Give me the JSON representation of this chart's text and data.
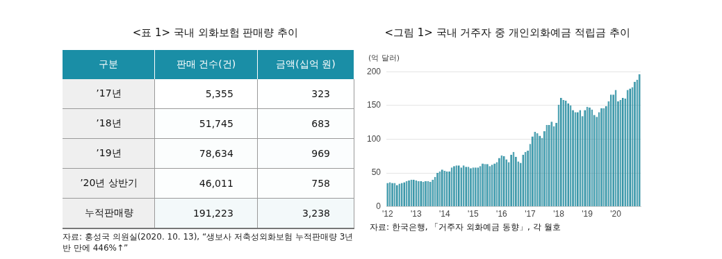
{
  "chart_data": [
    {
      "type": "heatmap",
      "title": "<표 1> 국내 외화보험 판매량 추이",
      "ylabel": "구분",
      "y_categories": [
        "’17년",
        "’18년",
        "’19년",
        "’20년 상반기",
        "누적판매량"
      ],
      "categories": [
        "판매 건수(건)",
        "금액(십억 원)"
      ],
      "cells": [
        [
          5355,
          323
        ],
        [
          51745,
          683
        ],
        [
          78634,
          969
        ],
        [
          46011,
          758
        ],
        [
          191223,
          3238
        ]
      ],
      "grid": true,
      "cell_labels": [
        [
          "5,355",
          "323"
        ],
        [
          "51,745",
          "683"
        ],
        [
          "78,634",
          "969"
        ],
        [
          "46,011",
          "758"
        ],
        [
          "191,223",
          "3,238"
        ]
      ],
      "annotations": [
        "자료: 홍성국 의원실(2020. 10. 13), “생보사 저축성외화보험 누적판매량 3년 반 만에 446%↑”"
      ]
    },
    {
      "type": "bar",
      "title": "<그림 1> 국내 거주자 중 개인외화예금 적립금 추이",
      "ylabel": "(억 달러)",
      "categories": [
        "'12",
        null,
        null,
        null,
        null,
        null,
        null,
        null,
        null,
        null,
        null,
        null,
        "'13",
        null,
        null,
        null,
        null,
        null,
        null,
        null,
        null,
        null,
        null,
        null,
        "'14",
        null,
        null,
        null,
        null,
        null,
        null,
        null,
        null,
        null,
        null,
        null,
        "'15",
        null,
        null,
        null,
        null,
        null,
        null,
        null,
        null,
        null,
        null,
        null,
        "'16",
        null,
        null,
        null,
        null,
        null,
        null,
        null,
        null,
        null,
        null,
        null,
        "'17",
        null,
        null,
        null,
        null,
        null,
        null,
        null,
        null,
        null,
        null,
        null,
        "'18",
        null,
        null,
        null,
        null,
        null,
        null,
        null,
        null,
        null,
        null,
        null,
        "'19",
        null,
        null,
        null,
        null,
        null,
        null,
        null,
        null,
        null,
        null,
        null,
        "'20",
        null,
        null,
        null,
        null,
        null,
        null,
        null,
        null,
        null,
        null
      ],
      "values": [
        35,
        36,
        35,
        35,
        32,
        34,
        35,
        36,
        38,
        39,
        40,
        40,
        39,
        38,
        38,
        37,
        38,
        38,
        37,
        40,
        44,
        50,
        52,
        55,
        53,
        52,
        52,
        58,
        60,
        61,
        61,
        58,
        61,
        59,
        59,
        57,
        58,
        58,
        58,
        60,
        64,
        63,
        63,
        60,
        62,
        64,
        66,
        72,
        76,
        75,
        70,
        66,
        77,
        81,
        74,
        67,
        65,
        77,
        81,
        83,
        93,
        104,
        111,
        109,
        105,
        102,
        112,
        121,
        121,
        126,
        119,
        124,
        151,
        161,
        158,
        157,
        153,
        150,
        143,
        140,
        140,
        143,
        134,
        143,
        148,
        147,
        144,
        136,
        133,
        140,
        146,
        146,
        149,
        156,
        166,
        166,
        173,
        156,
        158,
        161,
        160,
        173,
        175,
        177,
        185,
        188,
        196
      ],
      "color": "#2b9cb2",
      "ylim": [
        0,
        200
      ],
      "yticks": [
        0,
        50,
        100,
        150,
        200
      ],
      "grid": "y",
      "annotations": [
        "자료: 한국은행, 「거주자 외화예금 동향」, 각 월호"
      ]
    }
  ]
}
